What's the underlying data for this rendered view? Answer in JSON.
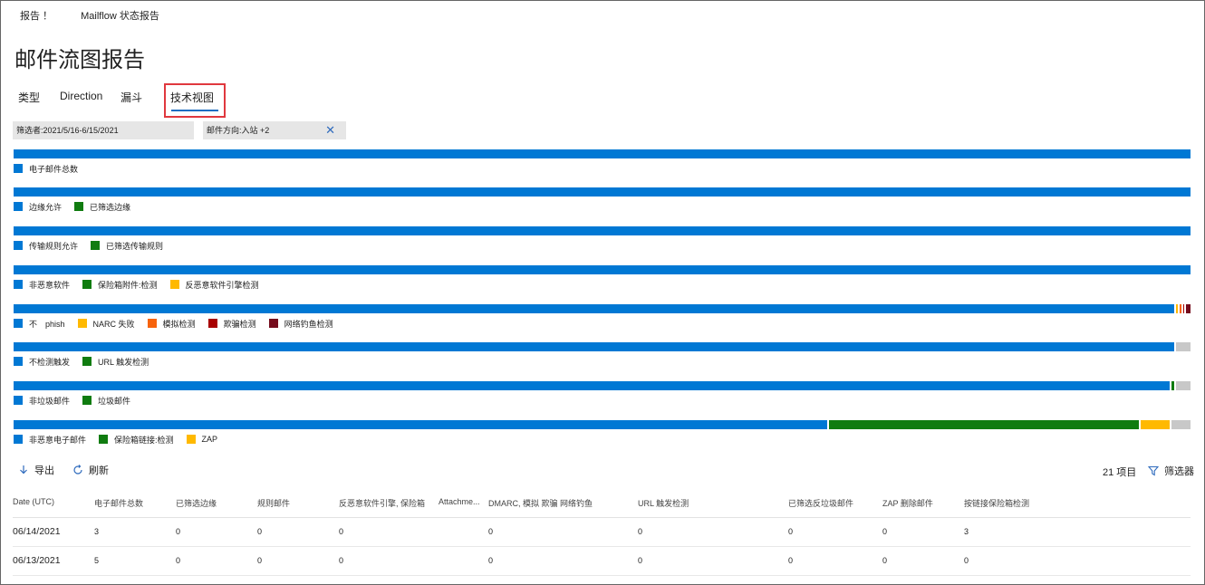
{
  "breadcrumb": [
    "报告 ！",
    "Mailflow 状态报告"
  ],
  "page_title": "邮件流图报告",
  "tabs": [
    {
      "label": "类型"
    },
    {
      "label": "Direction"
    },
    {
      "label": "漏斗"
    },
    {
      "label": "技术视图",
      "active": true
    }
  ],
  "filters": [
    {
      "label": "筛选者:2021/5/16-6/15/2021"
    },
    {
      "label": "邮件方向:入站 +2",
      "has_clear": true
    }
  ],
  "colors": {
    "blue": "#0078d4",
    "green": "#107c10",
    "yellow": "#ffb900",
    "orange": "#f7630c",
    "red": "#a80000",
    "darkred": "#750b1c",
    "gray": "#c8c8c8"
  },
  "chart_data": {
    "type": "bar",
    "rows": [
      {
        "segments": [
          {
            "color": "blue",
            "value": 1.0
          }
        ],
        "legend": [
          "电子邮件总数"
        ]
      },
      {
        "segments": [
          {
            "color": "blue",
            "value": 1.0
          }
        ],
        "legend": [
          "边缘允许",
          "已筛选边缘"
        ]
      },
      {
        "segments": [
          {
            "color": "blue",
            "value": 1.0
          }
        ],
        "legend": [
          "传输规则允许",
          "已筛选传输规则"
        ]
      },
      {
        "segments": [
          {
            "color": "blue",
            "value": 1.0
          }
        ],
        "legend": [
          "非恶意软件",
          "保险箱附件:检测",
          "反恶意软件引擎检测"
        ]
      },
      {
        "segments": [
          {
            "color": "blue",
            "value": 0.9985
          },
          {
            "color": "yellow",
            "value": 0.0015
          },
          {
            "color": "orange",
            "value": 0.0015
          },
          {
            "color": "red",
            "value": 0.001
          },
          {
            "color": "darkred",
            "value": 0.004
          }
        ],
        "legend": [
          "不　phish",
          "NARC 失败",
          "模拟检测",
          "欺骗检测",
          "网络钓鱼检测"
        ]
      },
      {
        "segments": [
          {
            "color": "blue",
            "value": 0.9985
          },
          {
            "color": "gray",
            "value": 0.012
          }
        ],
        "legend": [
          "不检测触发",
          "URL 触发检测"
        ]
      },
      {
        "segments": [
          {
            "color": "blue",
            "value": 0.9955
          },
          {
            "color": "green",
            "value": 0.002
          },
          {
            "color": "gray",
            "value": 0.0125
          }
        ],
        "legend": [
          "非垃圾邮件",
          "垃圾邮件"
        ]
      },
      {
        "segments": [
          {
            "color": "blue",
            "value": 0.692
          },
          {
            "color": "green",
            "value": 0.264
          },
          {
            "color": "yellow",
            "value": 0.025
          },
          {
            "color": "gray",
            "value": 0.016
          }
        ],
        "legend": [
          "非恶意电子邮件",
          "保险箱链接:检测",
          "ZAP"
        ]
      }
    ]
  },
  "toolbar": {
    "export_label": "导出",
    "refresh_label": "刷新",
    "count_label": "21 项目",
    "filter_label": "筛选器"
  },
  "table": {
    "headers": [
      "Date (UTC)",
      "电子邮件总数",
      "已筛选边缘",
      "规则邮件",
      "反恶意软件引擎, 保险箱",
      "Attachme...",
      "DMARC, 模拟 欺骗 网络钓鱼",
      "URL 触发检测",
      "已筛选反垃圾邮件",
      "ZAP 删除邮件",
      "按链接保险箱检测"
    ],
    "rows": [
      [
        "06/14/2021",
        "3",
        "0",
        "0",
        "0",
        "",
        "0",
        "0",
        "0",
        "0",
        "3"
      ],
      [
        "06/13/2021",
        "5",
        "0",
        "0",
        "0",
        "",
        "0",
        "0",
        "0",
        "0",
        "0"
      ]
    ]
  }
}
